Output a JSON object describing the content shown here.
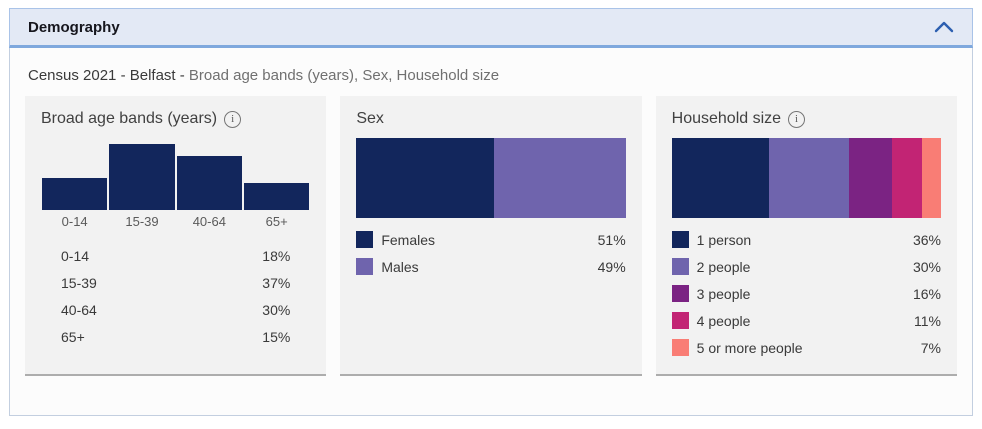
{
  "header": {
    "title": "Demography",
    "collapse_icon": "chevron-up-icon"
  },
  "subtitle": {
    "primary": "Census 2021 - Belfast - ",
    "secondary": "Broad age bands (years), Sex, Household size"
  },
  "colors": {
    "navy": "#12265c",
    "purple": "#6f64ad",
    "violet": "#7b2383",
    "magenta": "#c22474",
    "salmon": "#f97d75",
    "accent_blue": "#2d5fb0",
    "header_bg": "#e3e9f5",
    "card_bg": "#f2f2f2"
  },
  "chart_data": [
    {
      "type": "bar",
      "title": "Broad age bands (years)",
      "has_info_icon": true,
      "categories": [
        "0-14",
        "15-39",
        "40-64",
        "65+"
      ],
      "values": [
        18,
        37,
        30,
        15
      ],
      "unit": "%",
      "display_values": [
        "18%",
        "37%",
        "30%",
        "15%"
      ],
      "bar_color": "#12265c",
      "xlabel": "",
      "ylabel": "",
      "grid": false,
      "legend_position": "table-below"
    },
    {
      "type": "stacked-bar",
      "title": "Sex",
      "has_info_icon": false,
      "unit": "%",
      "series": [
        {
          "name": "Females",
          "value": 51,
          "display": "51%",
          "color": "#12265c"
        },
        {
          "name": "Males",
          "value": 49,
          "display": "49%",
          "color": "#6f64ad"
        }
      ],
      "legend_position": "below"
    },
    {
      "type": "stacked-bar",
      "title": "Household size",
      "has_info_icon": true,
      "unit": "%",
      "series": [
        {
          "name": "1 person",
          "value": 36,
          "display": "36%",
          "color": "#12265c"
        },
        {
          "name": "2 people",
          "value": 30,
          "display": "30%",
          "color": "#6f64ad"
        },
        {
          "name": "3 people",
          "value": 16,
          "display": "16%",
          "color": "#7b2383"
        },
        {
          "name": "4 people",
          "value": 11,
          "display": "11%",
          "color": "#c22474"
        },
        {
          "name": "5 or more people",
          "value": 7,
          "display": "7%",
          "color": "#f97d75"
        }
      ],
      "legend_position": "below"
    }
  ]
}
